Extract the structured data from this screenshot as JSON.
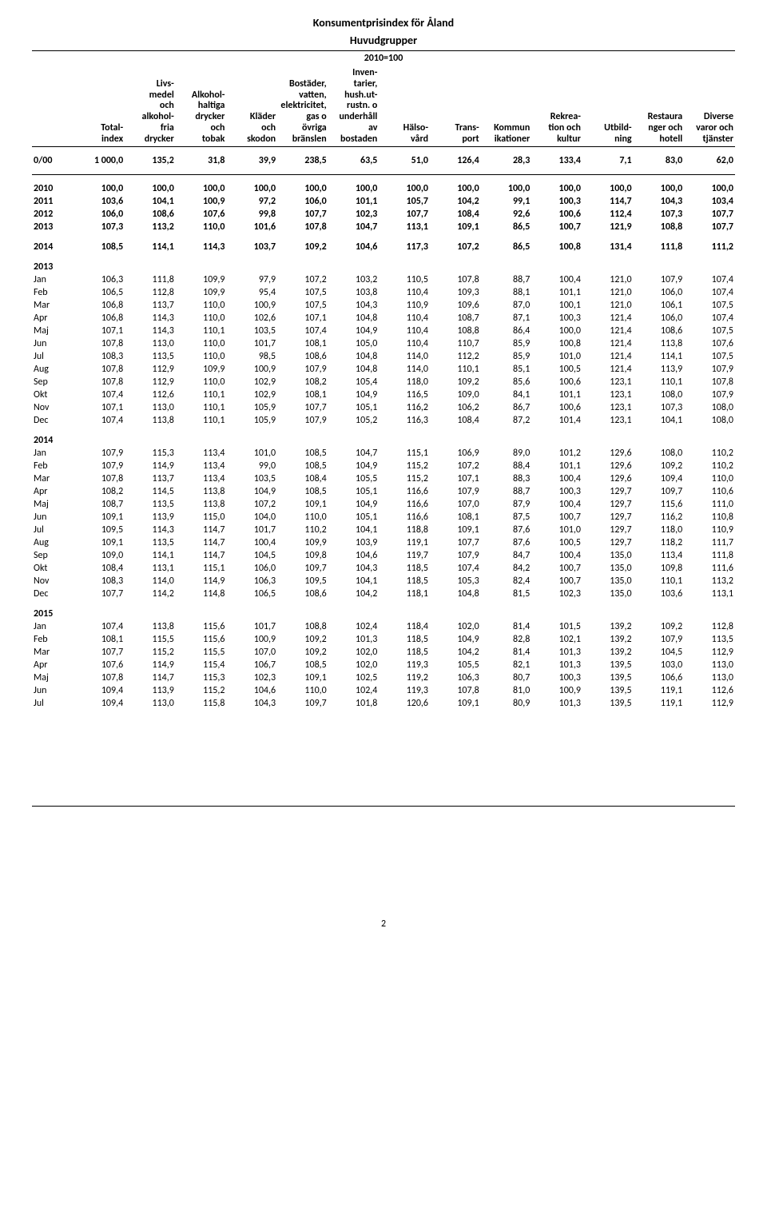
{
  "title_line1": "Konsumentprisindex för Åland",
  "title_line2": "Huvudgrupper",
  "base_year": "2010=100",
  "page_number": "2",
  "columns": [
    {
      "h": [
        "",
        "",
        "",
        "",
        "Total-",
        "index"
      ]
    },
    {
      "h": [
        "Livs-",
        "medel",
        "och",
        "alkohol-",
        "fria",
        "drycker"
      ]
    },
    {
      "h": [
        "",
        "Alkohol-",
        "haltiga",
        "drycker",
        "och",
        "tobak"
      ]
    },
    {
      "h": [
        "",
        "",
        "",
        "Kläder",
        "och",
        "skodon"
      ]
    },
    {
      "h": [
        "",
        "Bostäder,",
        "vatten,",
        "elektricitet,",
        "gas o",
        "övriga",
        "bränslen"
      ]
    },
    {
      "h": [
        "Inven-",
        "tarier,",
        "hush.ut-",
        "rustn. o",
        "underhåll",
        "av",
        "bostaden"
      ]
    },
    {
      "h": [
        "",
        "",
        "",
        "",
        "Hälso-",
        "vård"
      ]
    },
    {
      "h": [
        "",
        "",
        "",
        "",
        "Trans-",
        "port"
      ]
    },
    {
      "h": [
        "",
        "",
        "",
        "",
        "Kommun",
        "ikationer"
      ]
    },
    {
      "h": [
        "",
        "",
        "",
        "Rekrea-",
        "tion och",
        "kultur"
      ]
    },
    {
      "h": [
        "",
        "",
        "",
        "",
        "Utbild-",
        "ning"
      ]
    },
    {
      "h": [
        "",
        "",
        "",
        "Restaura",
        "nger och",
        "hotell"
      ]
    },
    {
      "h": [
        "",
        "",
        "",
        "Diverse",
        "varor och",
        "tjänster"
      ]
    }
  ],
  "weights": {
    "label": "0/00",
    "values": [
      "1 000,0",
      "135,2",
      "31,8",
      "39,9",
      "238,5",
      "63,5",
      "51,0",
      "126,4",
      "28,3",
      "133,4",
      "7,1",
      "83,0",
      "62,0"
    ]
  },
  "sections": [
    {
      "rows": [
        {
          "label": "2010",
          "bold": true,
          "v": [
            "100,0",
            "100,0",
            "100,0",
            "100,0",
            "100,0",
            "100,0",
            "100,0",
            "100,0",
            "100,0",
            "100,0",
            "100,0",
            "100,0",
            "100,0"
          ]
        },
        {
          "label": "2011",
          "bold": true,
          "v": [
            "103,6",
            "104,1",
            "100,9",
            "97,2",
            "106,0",
            "101,1",
            "105,7",
            "104,2",
            "99,1",
            "100,3",
            "114,7",
            "104,3",
            "103,4"
          ]
        },
        {
          "label": "2012",
          "bold": true,
          "v": [
            "106,0",
            "108,6",
            "107,6",
            "99,8",
            "107,7",
            "102,3",
            "107,7",
            "108,4",
            "92,6",
            "100,6",
            "112,4",
            "107,3",
            "107,7"
          ]
        },
        {
          "label": "2013",
          "bold": true,
          "v": [
            "107,3",
            "113,2",
            "110,0",
            "101,6",
            "107,8",
            "104,7",
            "113,1",
            "109,1",
            "86,5",
            "100,7",
            "121,9",
            "108,8",
            "107,7"
          ]
        }
      ]
    },
    {
      "rows": [
        {
          "label": "2014",
          "bold": true,
          "gap": true,
          "v": [
            "108,5",
            "114,1",
            "114,3",
            "103,7",
            "109,2",
            "104,6",
            "117,3",
            "107,2",
            "86,5",
            "100,8",
            "131,4",
            "111,8",
            "111,2"
          ]
        }
      ]
    },
    {
      "year": "2013",
      "rows": [
        {
          "label": "Jan",
          "v": [
            "106,3",
            "111,8",
            "109,9",
            "97,9",
            "107,2",
            "103,2",
            "110,5",
            "107,8",
            "88,7",
            "100,4",
            "121,0",
            "107,9",
            "107,4"
          ]
        },
        {
          "label": "Feb",
          "v": [
            "106,5",
            "112,8",
            "109,9",
            "95,4",
            "107,5",
            "103,8",
            "110,4",
            "109,3",
            "88,1",
            "101,1",
            "121,0",
            "106,0",
            "107,4"
          ]
        },
        {
          "label": "Mar",
          "v": [
            "106,8",
            "113,7",
            "110,0",
            "100,9",
            "107,5",
            "104,3",
            "110,9",
            "109,6",
            "87,0",
            "100,1",
            "121,0",
            "106,1",
            "107,5"
          ]
        },
        {
          "label": "Apr",
          "v": [
            "106,8",
            "114,3",
            "110,0",
            "102,6",
            "107,1",
            "104,8",
            "110,4",
            "108,7",
            "87,1",
            "100,3",
            "121,4",
            "106,0",
            "107,4"
          ]
        },
        {
          "label": "Maj",
          "v": [
            "107,1",
            "114,3",
            "110,1",
            "103,5",
            "107,4",
            "104,9",
            "110,4",
            "108,8",
            "86,4",
            "100,0",
            "121,4",
            "108,6",
            "107,5"
          ]
        },
        {
          "label": "Jun",
          "v": [
            "107,8",
            "113,0",
            "110,0",
            "101,7",
            "108,1",
            "105,0",
            "110,4",
            "110,7",
            "85,9",
            "100,8",
            "121,4",
            "113,8",
            "107,6"
          ]
        },
        {
          "label": "Jul",
          "v": [
            "108,3",
            "113,5",
            "110,0",
            "98,5",
            "108,6",
            "104,8",
            "114,0",
            "112,2",
            "85,9",
            "101,0",
            "121,4",
            "114,1",
            "107,5"
          ]
        },
        {
          "label": "Aug",
          "v": [
            "107,8",
            "112,9",
            "109,9",
            "100,9",
            "107,9",
            "104,8",
            "114,0",
            "110,1",
            "85,1",
            "100,5",
            "121,4",
            "113,9",
            "107,9"
          ]
        },
        {
          "label": "Sep",
          "v": [
            "107,8",
            "112,9",
            "110,0",
            "102,9",
            "108,2",
            "105,4",
            "118,0",
            "109,2",
            "85,6",
            "100,6",
            "123,1",
            "110,1",
            "107,8"
          ]
        },
        {
          "label": "Okt",
          "v": [
            "107,4",
            "112,6",
            "110,1",
            "102,9",
            "108,1",
            "104,9",
            "116,5",
            "109,0",
            "84,1",
            "101,1",
            "123,1",
            "108,0",
            "107,9"
          ]
        },
        {
          "label": "Nov",
          "v": [
            "107,1",
            "113,0",
            "110,1",
            "105,9",
            "107,7",
            "105,1",
            "116,2",
            "106,2",
            "86,7",
            "100,6",
            "123,1",
            "107,3",
            "108,0"
          ]
        },
        {
          "label": "Dec",
          "v": [
            "107,4",
            "113,8",
            "110,1",
            "105,9",
            "107,9",
            "105,2",
            "116,3",
            "108,4",
            "87,2",
            "101,4",
            "123,1",
            "104,1",
            "108,0"
          ]
        }
      ]
    },
    {
      "year": "2014",
      "rows": [
        {
          "label": "Jan",
          "v": [
            "107,9",
            "115,3",
            "113,4",
            "101,0",
            "108,5",
            "104,7",
            "115,1",
            "106,9",
            "89,0",
            "101,2",
            "129,6",
            "108,0",
            "110,2"
          ]
        },
        {
          "label": "Feb",
          "v": [
            "107,9",
            "114,9",
            "113,4",
            "99,0",
            "108,5",
            "104,9",
            "115,2",
            "107,2",
            "88,4",
            "101,1",
            "129,6",
            "109,2",
            "110,2"
          ]
        },
        {
          "label": "Mar",
          "v": [
            "107,8",
            "113,7",
            "113,4",
            "103,5",
            "108,4",
            "105,5",
            "115,2",
            "107,1",
            "88,3",
            "100,4",
            "129,6",
            "109,4",
            "110,0"
          ]
        },
        {
          "label": "Apr",
          "v": [
            "108,2",
            "114,5",
            "113,8",
            "104,9",
            "108,5",
            "105,1",
            "116,6",
            "107,9",
            "88,7",
            "100,3",
            "129,7",
            "109,7",
            "110,6"
          ]
        },
        {
          "label": "Maj",
          "v": [
            "108,7",
            "113,5",
            "113,8",
            "107,2",
            "109,1",
            "104,9",
            "116,6",
            "107,0",
            "87,9",
            "100,4",
            "129,7",
            "115,6",
            "111,0"
          ]
        },
        {
          "label": "Jun",
          "v": [
            "109,1",
            "113,9",
            "115,0",
            "104,0",
            "110,0",
            "105,1",
            "116,6",
            "108,1",
            "87,5",
            "100,7",
            "129,7",
            "116,2",
            "110,8"
          ]
        },
        {
          "label": "Jul",
          "v": [
            "109,5",
            "114,3",
            "114,7",
            "101,7",
            "110,2",
            "104,1",
            "118,8",
            "109,1",
            "87,6",
            "101,0",
            "129,7",
            "118,0",
            "110,9"
          ]
        },
        {
          "label": "Aug",
          "v": [
            "109,1",
            "113,5",
            "114,7",
            "100,4",
            "109,9",
            "103,9",
            "119,1",
            "107,7",
            "87,6",
            "100,5",
            "129,7",
            "118,2",
            "111,7"
          ]
        },
        {
          "label": "Sep",
          "v": [
            "109,0",
            "114,1",
            "114,7",
            "104,5",
            "109,8",
            "104,6",
            "119,7",
            "107,9",
            "84,7",
            "100,4",
            "135,0",
            "113,4",
            "111,8"
          ]
        },
        {
          "label": "Okt",
          "v": [
            "108,4",
            "113,1",
            "115,1",
            "106,0",
            "109,7",
            "104,3",
            "118,5",
            "107,4",
            "84,2",
            "100,7",
            "135,0",
            "109,8",
            "111,6"
          ]
        },
        {
          "label": "Nov",
          "v": [
            "108,3",
            "114,0",
            "114,9",
            "106,3",
            "109,5",
            "104,1",
            "118,5",
            "105,3",
            "82,4",
            "100,7",
            "135,0",
            "110,1",
            "113,2"
          ]
        },
        {
          "label": "Dec",
          "v": [
            "107,7",
            "114,2",
            "114,8",
            "106,5",
            "108,6",
            "104,2",
            "118,1",
            "104,8",
            "81,5",
            "102,3",
            "135,0",
            "103,6",
            "113,1"
          ]
        }
      ]
    },
    {
      "year": "2015",
      "rows": [
        {
          "label": "Jan",
          "v": [
            "107,4",
            "113,8",
            "115,6",
            "101,7",
            "108,8",
            "102,4",
            "118,4",
            "102,0",
            "81,4",
            "101,5",
            "139,2",
            "109,2",
            "112,8"
          ]
        },
        {
          "label": "Feb",
          "v": [
            "108,1",
            "115,5",
            "115,6",
            "100,9",
            "109,2",
            "101,3",
            "118,5",
            "104,9",
            "82,8",
            "102,1",
            "139,2",
            "107,9",
            "113,5"
          ]
        },
        {
          "label": "Mar",
          "v": [
            "107,7",
            "115,2",
            "115,5",
            "107,0",
            "109,2",
            "102,0",
            "118,5",
            "104,2",
            "81,4",
            "101,3",
            "139,2",
            "104,5",
            "112,9"
          ]
        },
        {
          "label": "Apr",
          "v": [
            "107,6",
            "114,9",
            "115,4",
            "106,7",
            "108,5",
            "102,0",
            "119,3",
            "105,5",
            "82,1",
            "101,3",
            "139,5",
            "103,0",
            "113,0"
          ]
        },
        {
          "label": "Maj",
          "v": [
            "107,8",
            "114,7",
            "115,3",
            "102,3",
            "109,1",
            "102,5",
            "119,2",
            "106,3",
            "80,7",
            "100,3",
            "139,5",
            "106,6",
            "113,0"
          ]
        },
        {
          "label": "Jun",
          "v": [
            "109,4",
            "113,9",
            "115,2",
            "104,6",
            "110,0",
            "102,4",
            "119,3",
            "107,8",
            "81,0",
            "100,9",
            "139,5",
            "119,1",
            "112,6"
          ]
        },
        {
          "label": "Jul",
          "v": [
            "109,4",
            "113,0",
            "115,8",
            "104,3",
            "109,7",
            "101,8",
            "120,6",
            "109,1",
            "80,9",
            "101,3",
            "139,5",
            "119,1",
            "112,9"
          ]
        }
      ]
    }
  ]
}
